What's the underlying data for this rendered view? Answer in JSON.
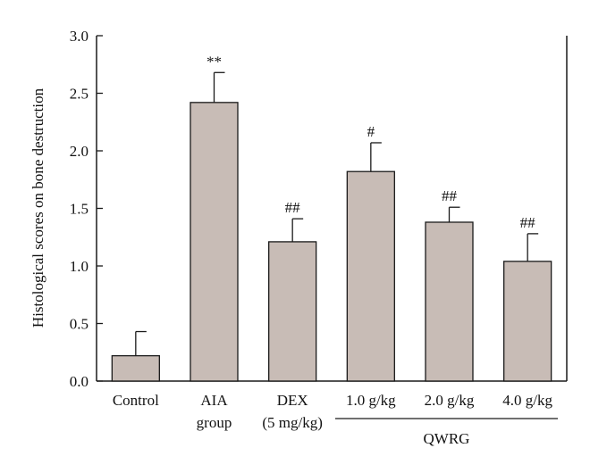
{
  "chart_data": {
    "type": "bar",
    "title": "",
    "xlabel": "",
    "ylabel": "Histological scores on bone destruction",
    "ylim": [
      0,
      3.0
    ],
    "yticks": [
      "0.0",
      "0.5",
      "1.0",
      "1.5",
      "2.0",
      "2.5",
      "3.0"
    ],
    "grid": false,
    "categories": [
      {
        "lines": [
          "Control"
        ]
      },
      {
        "lines": [
          "AIA",
          "group"
        ]
      },
      {
        "lines": [
          "DEX",
          "(5 mg/kg)"
        ]
      },
      {
        "lines": [
          "1.0 g/kg"
        ]
      },
      {
        "lines": [
          "2.0 g/kg"
        ]
      },
      {
        "lines": [
          "4.0 g/kg"
        ]
      }
    ],
    "values": [
      0.22,
      2.42,
      1.21,
      1.82,
      1.38,
      1.04
    ],
    "errors": [
      0.21,
      0.26,
      0.2,
      0.25,
      0.13,
      0.24
    ],
    "annotations": [
      "",
      "**",
      "##",
      "#",
      "##",
      "##"
    ],
    "group_label": {
      "text": "QWRG",
      "from_index": 3,
      "to_index": 5
    },
    "bar_color": "#c8bcb6",
    "bar_edge_color": "#1a1a1a"
  }
}
